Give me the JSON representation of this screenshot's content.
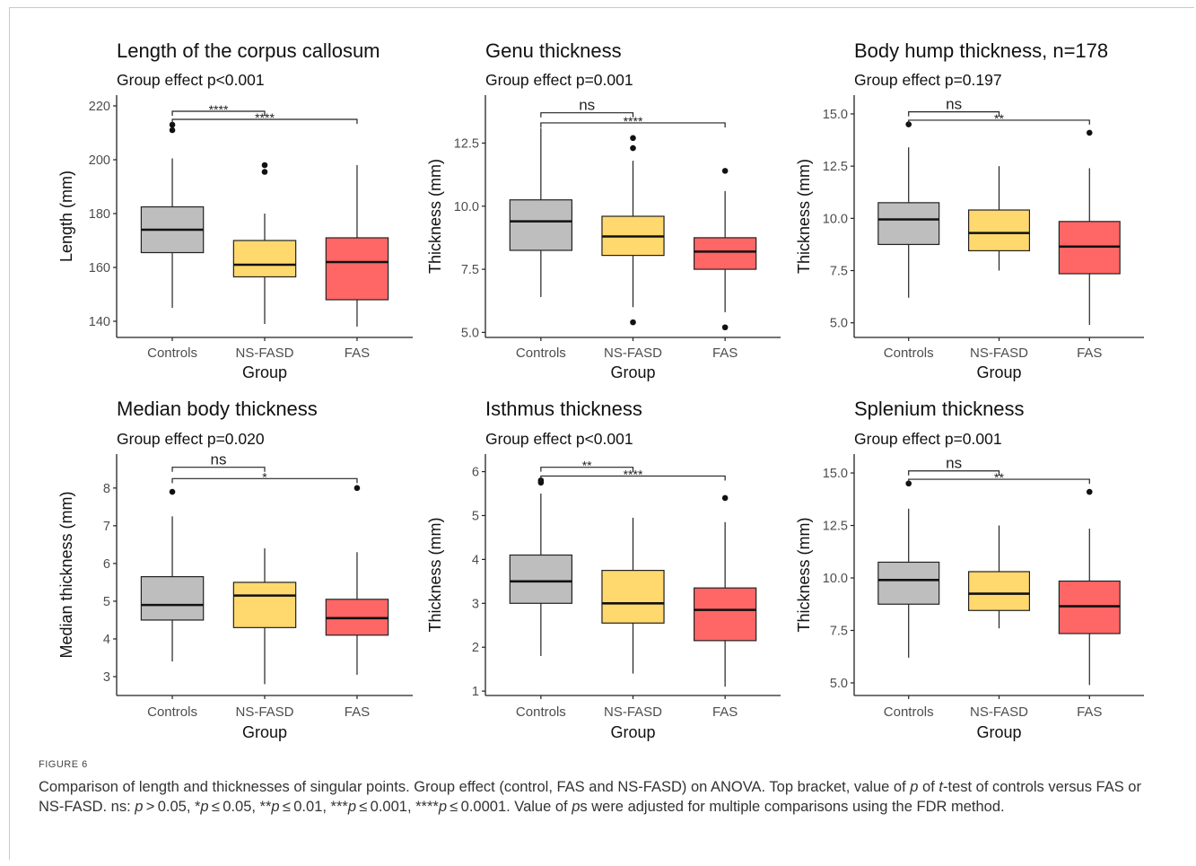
{
  "figure": {
    "label": "FIGURE 6",
    "caption_html": "Comparison of length and thicknesses of singular points. Group effect (control, FAS and NS-FASD) on ANOVA. Top bracket, value of <i>p</i> of <i>t</i>-test of controls versus FAS or NS-FASD. ns: <i>p</i>&thinsp;&gt;&thinsp;0.05, *<i>p</i>&thinsp;≤&thinsp;0.05, **<i>p</i>&thinsp;≤&thinsp;0.01, ***<i>p</i>&thinsp;≤&thinsp;0.001, ****<i>p</i>&thinsp;≤&thinsp;0.0001. Value of <i>p</i>s were adjusted for multiple comparisons using the FDR method."
  },
  "colors": {
    "Controls": "#bebebe",
    "NS-FASD": "#ffd86e",
    "FAS": "#ff6666"
  },
  "chart_data": [
    {
      "type": "box",
      "title": "Length of the corpus callosum",
      "subtitle": "Group effect p<0.001",
      "xlabel": "Group",
      "ylabel": "Length (mm)",
      "categories": [
        "Controls",
        "NS-FASD",
        "FAS"
      ],
      "ylim": [
        134,
        224
      ],
      "yticks": [
        140,
        160,
        180,
        200,
        220
      ],
      "boxes": [
        {
          "group": "Controls",
          "min": 145,
          "q1": 165.5,
          "median": 174,
          "q3": 182.5,
          "max": 200.5,
          "outliers": [
            213,
            211
          ]
        },
        {
          "group": "NS-FASD",
          "min": 139,
          "q1": 156.5,
          "median": 161,
          "q3": 170,
          "max": 180,
          "outliers": [
            198,
            195.5
          ]
        },
        {
          "group": "FAS",
          "min": 138,
          "q1": 148,
          "median": 162,
          "q3": 171,
          "max": 198,
          "outliers": []
        }
      ],
      "brackets": [
        {
          "from": "Controls",
          "to": "NS-FASD",
          "label": "****",
          "y": 218
        },
        {
          "from": "Controls",
          "to": "FAS",
          "label": "****",
          "y": 215
        }
      ]
    },
    {
      "type": "box",
      "title": "Genu thickness",
      "subtitle": "Group effect p=0.001",
      "xlabel": "Group",
      "ylabel": "Thickness (mm)",
      "categories": [
        "Controls",
        "NS-FASD",
        "FAS"
      ],
      "ylim": [
        4.8,
        14.4
      ],
      "yticks": [
        5.0,
        7.5,
        10.0,
        12.5
      ],
      "ytick_labels": [
        "5.0",
        "7.5",
        "10.0",
        "12.5"
      ],
      "boxes": [
        {
          "group": "Controls",
          "min": 6.4,
          "q1": 8.25,
          "median": 9.4,
          "q3": 10.25,
          "max": 13.1,
          "outliers": []
        },
        {
          "group": "NS-FASD",
          "min": 6.0,
          "q1": 8.05,
          "median": 8.8,
          "q3": 9.6,
          "max": 11.8,
          "outliers": [
            12.7,
            12.3,
            5.4
          ]
        },
        {
          "group": "FAS",
          "min": 5.8,
          "q1": 7.5,
          "median": 8.2,
          "q3": 8.75,
          "max": 10.6,
          "outliers": [
            11.4,
            5.2
          ]
        }
      ],
      "brackets": [
        {
          "from": "Controls",
          "to": "NS-FASD",
          "label": "ns",
          "y": 13.7
        },
        {
          "from": "Controls",
          "to": "FAS",
          "label": "****",
          "y": 13.3
        }
      ]
    },
    {
      "type": "box",
      "title": "Body hump thickness, n=178",
      "subtitle": "Group effect p=0.197",
      "xlabel": "Group",
      "ylabel": "Thickness (mm)",
      "categories": [
        "Controls",
        "NS-FASD",
        "FAS"
      ],
      "ylim": [
        4.3,
        15.9
      ],
      "yticks": [
        5.0,
        7.5,
        10.0,
        12.5,
        15.0
      ],
      "ytick_labels": [
        "5.0",
        "7.5",
        "10.0",
        "12.5",
        "15.0"
      ],
      "boxes": [
        {
          "group": "Controls",
          "min": 6.2,
          "q1": 8.75,
          "median": 9.95,
          "q3": 10.75,
          "max": 13.4,
          "outliers": [
            14.5
          ]
        },
        {
          "group": "NS-FASD",
          "min": 7.5,
          "q1": 8.45,
          "median": 9.3,
          "q3": 10.4,
          "max": 12.5,
          "outliers": []
        },
        {
          "group": "FAS",
          "min": 4.9,
          "q1": 7.35,
          "median": 8.65,
          "q3": 9.85,
          "max": 12.4,
          "outliers": [
            14.1
          ]
        }
      ],
      "brackets": [
        {
          "from": "Controls",
          "to": "NS-FASD",
          "label": "ns",
          "y": 15.1
        },
        {
          "from": "Controls",
          "to": "FAS",
          "label": "**",
          "y": 14.7
        }
      ]
    },
    {
      "type": "box",
      "title": "Median body thickness",
      "subtitle": "Group effect p=0.020",
      "xlabel": "Group",
      "ylabel": "Median thickness (mm)",
      "categories": [
        "Controls",
        "NS-FASD",
        "FAS"
      ],
      "ylim": [
        2.5,
        8.9
      ],
      "yticks": [
        3,
        4,
        5,
        6,
        7,
        8
      ],
      "boxes": [
        {
          "group": "Controls",
          "min": 3.4,
          "q1": 4.5,
          "median": 4.9,
          "q3": 5.65,
          "max": 7.25,
          "outliers": [
            7.9
          ]
        },
        {
          "group": "NS-FASD",
          "min": 2.8,
          "q1": 4.3,
          "median": 5.15,
          "q3": 5.5,
          "max": 6.4,
          "outliers": []
        },
        {
          "group": "FAS",
          "min": 3.05,
          "q1": 4.1,
          "median": 4.55,
          "q3": 5.05,
          "max": 6.3,
          "outliers": [
            8.0
          ]
        }
      ],
      "brackets": [
        {
          "from": "Controls",
          "to": "NS-FASD",
          "label": "ns",
          "y": 8.55
        },
        {
          "from": "Controls",
          "to": "FAS",
          "label": "*",
          "y": 8.25
        }
      ]
    },
    {
      "type": "box",
      "title": "Isthmus thickness",
      "subtitle": "Group effect p<0.001",
      "xlabel": "Group",
      "ylabel": "Thickness (mm)",
      "categories": [
        "Controls",
        "NS-FASD",
        "FAS"
      ],
      "ylim": [
        0.9,
        6.4
      ],
      "yticks": [
        1,
        2,
        3,
        4,
        5,
        6
      ],
      "boxes": [
        {
          "group": "Controls",
          "min": 1.8,
          "q1": 3.0,
          "median": 3.5,
          "q3": 4.1,
          "max": 5.5,
          "outliers": [
            5.8,
            5.75
          ]
        },
        {
          "group": "NS-FASD",
          "min": 1.4,
          "q1": 2.55,
          "median": 3.0,
          "q3": 3.75,
          "max": 4.95,
          "outliers": []
        },
        {
          "group": "FAS",
          "min": 1.1,
          "q1": 2.15,
          "median": 2.85,
          "q3": 3.35,
          "max": 4.85,
          "outliers": [
            5.4
          ]
        }
      ],
      "brackets": [
        {
          "from": "Controls",
          "to": "NS-FASD",
          "label": "**",
          "y": 6.1
        },
        {
          "from": "Controls",
          "to": "FAS",
          "label": "****",
          "y": 5.9
        }
      ]
    },
    {
      "type": "box",
      "title": "Splenium thickness",
      "subtitle": "Group effect p=0.001",
      "xlabel": "Group",
      "ylabel": "Thickness (mm)",
      "categories": [
        "Controls",
        "NS-FASD",
        "FAS"
      ],
      "ylim": [
        4.4,
        15.9
      ],
      "yticks": [
        5.0,
        7.5,
        10.0,
        12.5,
        15.0
      ],
      "ytick_labels": [
        "5.0",
        "7.5",
        "10.0",
        "12.5",
        "15.0"
      ],
      "boxes": [
        {
          "group": "Controls",
          "min": 6.2,
          "q1": 8.75,
          "median": 9.9,
          "q3": 10.75,
          "max": 13.3,
          "outliers": [
            14.5
          ]
        },
        {
          "group": "NS-FASD",
          "min": 7.6,
          "q1": 8.45,
          "median": 9.25,
          "q3": 10.3,
          "max": 12.5,
          "outliers": []
        },
        {
          "group": "FAS",
          "min": 4.9,
          "q1": 7.35,
          "median": 8.65,
          "q3": 9.85,
          "max": 12.35,
          "outliers": [
            14.1
          ]
        }
      ],
      "brackets": [
        {
          "from": "Controls",
          "to": "NS-FASD",
          "label": "ns",
          "y": 15.1
        },
        {
          "from": "Controls",
          "to": "FAS",
          "label": "**",
          "y": 14.7
        }
      ]
    }
  ]
}
